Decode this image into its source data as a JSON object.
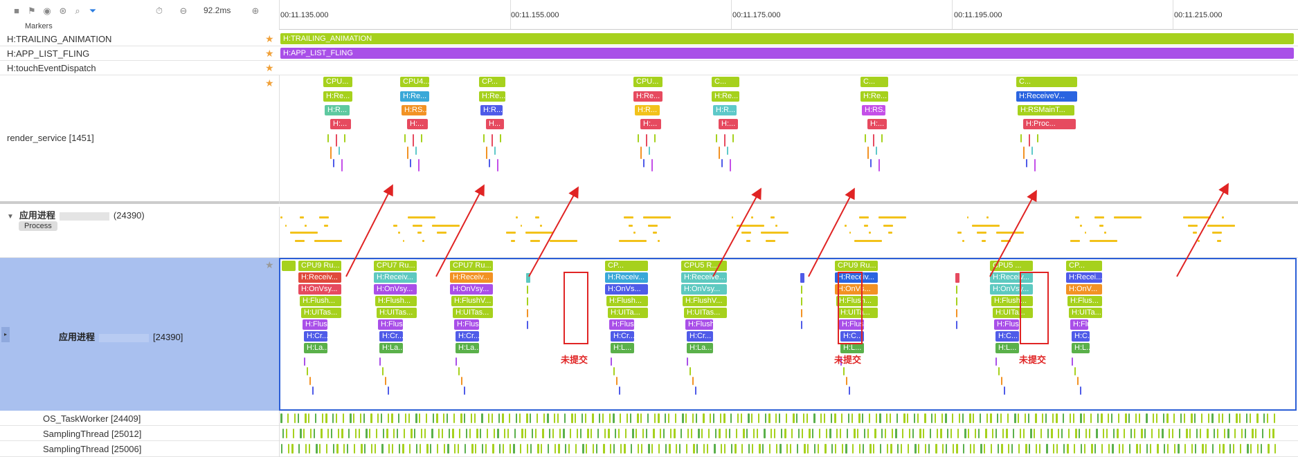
{
  "toolbar": {
    "zoom_value": "92.2ms",
    "icons": [
      "stop-icon",
      "flag-icon",
      "navigation-icon",
      "link-icon",
      "search-icon",
      "filter-icon",
      "timer-icon",
      "zoom-out-icon",
      "zoom-in-icon"
    ]
  },
  "markers_label": "Markers",
  "ruler": {
    "ticks": [
      "00:11.135.000",
      "00:11.155.000",
      "00:11.175.000",
      "00:11.195.000",
      "00:11.215.000"
    ]
  },
  "rows": {
    "trailing_label": "H:TRAILING_ANIMATION",
    "trailing_bar": "H:TRAILING_ANIMATION",
    "fling_label": "H:APP_LIST_FLING",
    "fling_bar": "H:APP_LIST_FLING",
    "touch_label": "H:touchEventDispatch",
    "render_service_label": "render_service [1451]",
    "app_group_label": "应用进程",
    "app_group_pid": "(24390)",
    "process_badge": "Process",
    "app_thread_label": "应用进程",
    "app_thread_pid": "[24390]",
    "os_taskworker": "OS_TaskWorker [24409]",
    "sampling1": "SamplingThread [25012]",
    "sampling2": "SamplingThread [25006]"
  },
  "colors": {
    "trailing": "#a6d11d",
    "fling": "#a94fe8",
    "accent": "#2b5ed6",
    "annotation": "#e02424"
  },
  "rs_columns": [
    {
      "cpu": "CPU...",
      "l1": "H:Re...",
      "l2": "H:R...",
      "l3": "H:...",
      "c1": "#a6d11d",
      "c2": "#5ec9a0",
      "c3": "#e64a5f"
    },
    {
      "cpu": "CPU4...",
      "l1": "H:Re...",
      "l2": "H:RS...",
      "l3": "H:...",
      "c1": "#3aa8d8",
      "c2": "#f29224",
      "c3": "#e64a5f"
    },
    {
      "cpu": "CP...",
      "l1": "H:Re...",
      "l2": "H:R...",
      "l3": "H...",
      "c1": "#a6d11d",
      "c2": "#4f5be8",
      "c3": "#e64a5f"
    },
    {
      "cpu": "CPU...",
      "l1": "H:Re...",
      "l2": "H:R...",
      "l3": "H:...",
      "c1": "#e64a5f",
      "c2": "#f2c21a",
      "c3": "#e64a5f"
    },
    {
      "cpu": "C...",
      "l1": "H:Re...",
      "l2": "H:R...",
      "l3": "H:...",
      "c1": "#a6d11d",
      "c2": "#5ec9c9",
      "c3": "#e64a5f"
    },
    {
      "cpu": "C...",
      "l1": "H:Re...",
      "l2": "H:RS...",
      "l3": "H:...",
      "c1": "#a6d11d",
      "c2": "#c44fe8",
      "c3": "#e64a5f"
    },
    {
      "cpu": "C...",
      "l1": "H:ReceiveV...",
      "l2": "H:RSMainT...",
      "l3": "H:Proc...",
      "c1": "#2a64e0",
      "c2": "#a6d11d",
      "c3": "#e64a5f"
    }
  ],
  "app_columns": [
    {
      "cpu": "CPU9 Ru...",
      "r1": "H:Receiv...",
      "r2": "H:OnVsy...",
      "r3": "H:Flush...",
      "r4": "H:UITas...",
      "r5": "H:Flus...",
      "r6": "H:Cr...",
      "r7": "H:La...",
      "c1": "#e04a3c",
      "c2": "#e64a5f"
    },
    {
      "cpu": "CPU7 Ru...",
      "r1": "H:Receiv...",
      "r2": "H:OnVsy...",
      "r3": "H:Flush...",
      "r4": "H:UITas...",
      "r5": "H:Flus...",
      "r6": "H:Cr...",
      "r7": "H:La...",
      "c1": "#5ec9c0",
      "c2": "#a94fe8"
    },
    {
      "cpu": "CPU7 Ru...",
      "r1": "H:Receiv...",
      "r2": "H:OnVsy...",
      "r3": "H:FlushV...",
      "r4": "H:UITas...",
      "r5": "H:Flush...",
      "r6": "H:Cr...",
      "r7": "H:La...",
      "c1": "#f29224",
      "c2": "#a94fe8"
    },
    {
      "cpu": "CP...",
      "r1": "H:Receiv...",
      "r2": "H:OnVs...",
      "r3": "H:Flush...",
      "r4": "H:UITa...",
      "r5": "H:Flus...",
      "r6": "H:Cr...",
      "r7": "H:L...",
      "c1": "#3aa8d8",
      "c2": "#4f5be8"
    },
    {
      "cpu": "CPU5 R...",
      "r1": "H:Receive...",
      "r2": "H:OnVsy...",
      "r3": "H:FlushV...",
      "r4": "H:UITas...",
      "r5": "H:Flush...",
      "r6": "H:Cr...",
      "r7": "H:La...",
      "c1": "#5ec9c0",
      "c2": "#5ec9c0"
    },
    {
      "cpu": "CPU9 Ru...",
      "r1": "H:Receiv...",
      "r2": "H:OnVs...",
      "r3": "H:Flush...",
      "r4": "H:UITa...",
      "r5": "H:Flus...",
      "r6": "H:C...",
      "r7": "H:L...",
      "c1": "#2a64e0",
      "c2": "#f29224"
    },
    {
      "cpu": "CPU5 ...",
      "r1": "H:Receiv...",
      "r2": "H:OnVsy...",
      "r3": "H:Flush...",
      "r4": "H:UITa...",
      "r5": "H:Flus...",
      "r6": "H:C...",
      "r7": "H:L...",
      "c1": "#5ec9c0",
      "c2": "#5ec9c0"
    },
    {
      "cpu": "CP...",
      "r1": "H:Recei...",
      "r2": "H:OnV...",
      "r3": "H:Flus...",
      "r4": "H:UITa...",
      "r5": "H:Flus...",
      "r6": "H:C...",
      "r7": "H:L...",
      "c1": "#4f5be8",
      "c2": "#f29224"
    }
  ],
  "annotations": [
    "未提交",
    "未提交",
    "未提交"
  ]
}
